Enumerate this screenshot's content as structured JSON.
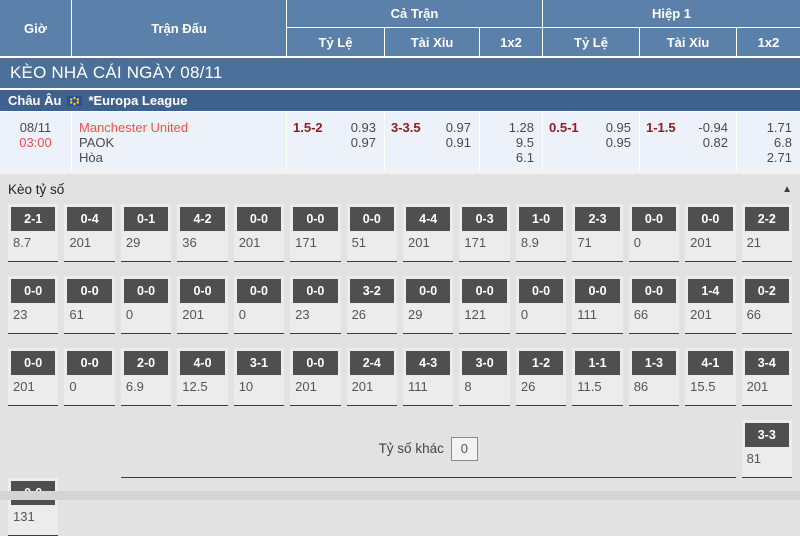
{
  "colors": {
    "header_blue": "#5b81ab",
    "banner_blue": "#4a7099",
    "league_bar_blue": "#3e6290",
    "match_row_bg": "#edf2fa",
    "accent_red": "#f0504b",
    "handicap_maroon": "#8d1f21",
    "section_bg": "#e2e2e2",
    "score_box_bg": "#4f4f4f"
  },
  "table_header": {
    "time": "Giờ",
    "match": "Trận Đấu",
    "full_match": "Cả Trận",
    "first_half": "Hiệp 1",
    "odds": "Tỷ Lệ",
    "over_under": "Tài Xỉu",
    "one_x_two": "1x2"
  },
  "banner": {
    "title": "KÈO NHÀ CÁI NGÀY 08/11"
  },
  "league": {
    "region": "Châu Âu",
    "name": "*Europa League",
    "flag": "eu-flag"
  },
  "match": {
    "date": "08/11",
    "time": "03:00",
    "home": "Manchester United",
    "away": "PAOK",
    "draw": "Hòa",
    "full": {
      "handicap_line": "1.5-2",
      "handicap_odds": [
        "0.93",
        "0.97"
      ],
      "ou_line": "3-3.5",
      "ou_odds": [
        "0.97",
        "0.91"
      ],
      "one_x_two": [
        "1.28",
        "9.5",
        "6.1"
      ]
    },
    "half": {
      "handicap_line": "0.5-1",
      "handicap_odds": [
        "0.95",
        "0.95"
      ],
      "ou_line": "1-1.5",
      "ou_odds": [
        "-0.94",
        "0.82"
      ],
      "one_x_two": [
        "1.71",
        "6.8",
        "2.71"
      ]
    }
  },
  "score_section": {
    "title": "Kèo tỷ số",
    "collapse_icon": "▲",
    "other_label": "Tỷ số khác",
    "other_value": "0",
    "rows": [
      [
        {
          "score": "2-1",
          "odds": "8.7"
        },
        {
          "score": "0-4",
          "odds": "201"
        },
        {
          "score": "0-1",
          "odds": "29"
        },
        {
          "score": "4-2",
          "odds": "36"
        },
        {
          "score": "0-0",
          "odds": "201"
        },
        {
          "score": "0-0",
          "odds": "171"
        },
        {
          "score": "0-0",
          "odds": "51"
        },
        {
          "score": "4-4",
          "odds": "201"
        },
        {
          "score": "0-3",
          "odds": "171"
        },
        {
          "score": "1-0",
          "odds": "8.9"
        },
        {
          "score": "2-3",
          "odds": "71"
        },
        {
          "score": "0-0",
          "odds": "0"
        },
        {
          "score": "0-0",
          "odds": "201"
        },
        {
          "score": "2-2",
          "odds": "21"
        }
      ],
      [
        {
          "score": "0-0",
          "odds": "23"
        },
        {
          "score": "0-0",
          "odds": "61"
        },
        {
          "score": "0-0",
          "odds": "0"
        },
        {
          "score": "0-0",
          "odds": "201"
        },
        {
          "score": "0-0",
          "odds": "0"
        },
        {
          "score": "0-0",
          "odds": "23"
        },
        {
          "score": "3-2",
          "odds": "26"
        },
        {
          "score": "0-0",
          "odds": "29"
        },
        {
          "score": "0-0",
          "odds": "121"
        },
        {
          "score": "0-0",
          "odds": "0"
        },
        {
          "score": "0-0",
          "odds": "111"
        },
        {
          "score": "0-0",
          "odds": "66"
        },
        {
          "score": "1-4",
          "odds": "201"
        },
        {
          "score": "0-2",
          "odds": "66"
        }
      ],
      [
        {
          "score": "0-0",
          "odds": "201"
        },
        {
          "score": "0-0",
          "odds": "0"
        },
        {
          "score": "2-0",
          "odds": "6.9"
        },
        {
          "score": "4-0",
          "odds": "12.5"
        },
        {
          "score": "3-1",
          "odds": "10"
        },
        {
          "score": "0-0",
          "odds": "201"
        },
        {
          "score": "2-4",
          "odds": "201"
        },
        {
          "score": "4-3",
          "odds": "111"
        },
        {
          "score": "3-0",
          "odds": "8"
        },
        {
          "score": "1-2",
          "odds": "26"
        },
        {
          "score": "1-1",
          "odds": "11.5"
        },
        {
          "score": "1-3",
          "odds": "86"
        },
        {
          "score": "4-1",
          "odds": "15.5"
        },
        {
          "score": "3-4",
          "odds": "201"
        }
      ],
      [
        {
          "score": "3-3",
          "odds": "81"
        },
        {
          "score": "0-0",
          "odds": "131"
        }
      ]
    ]
  }
}
